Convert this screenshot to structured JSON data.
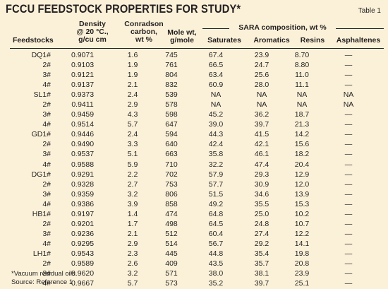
{
  "title": "FCCU FEEDSTOCK PROPERTIES FOR STUDY*",
  "table_number": "Table 1",
  "headers": {
    "feedstocks": "Feedstocks",
    "density_l1": "Density",
    "density_l2": "@ 20 °C.,",
    "density_l3": "g/cu cm",
    "conradson_l1": "Conradson",
    "conradson_l2": "carbon,",
    "conradson_l3": "wt %",
    "molewt_l1": "Mole wt,",
    "molewt_l2": "g/mole",
    "sara_group": "SARA composition, wt %",
    "saturates": "Saturates",
    "aromatics": "Aromatics",
    "resins": "Resins",
    "asphaltenes": "Asphaltenes"
  },
  "rows": [
    {
      "feed": "DQ1#",
      "density": "0.9071",
      "conradson": "1.6",
      "molewt": "745",
      "saturates": "67.4",
      "aromatics": "23.9",
      "resins": "8.70",
      "asphaltenes": "—"
    },
    {
      "feed": "2#",
      "density": "0.9103",
      "conradson": "1.9",
      "molewt": "761",
      "saturates": "66.5",
      "aromatics": "24.7",
      "resins": "8.80",
      "asphaltenes": "—"
    },
    {
      "feed": "3#",
      "density": "0.9121",
      "conradson": "1.9",
      "molewt": "804",
      "saturates": "63.4",
      "aromatics": "25.6",
      "resins": "11.0",
      "asphaltenes": "—"
    },
    {
      "feed": "4#",
      "density": "0.9137",
      "conradson": "2.1",
      "molewt": "832",
      "saturates": "60.9",
      "aromatics": "28.0",
      "resins": "11.1",
      "asphaltenes": "—"
    },
    {
      "feed": "SL1#",
      "density": "0.9373",
      "conradson": "2.4",
      "molewt": "539",
      "saturates": "NA",
      "aromatics": "NA",
      "resins": "NA",
      "asphaltenes": "NA"
    },
    {
      "feed": "2#",
      "density": "0.9411",
      "conradson": "2.9",
      "molewt": "578",
      "saturates": "NA",
      "aromatics": "NA",
      "resins": "NA",
      "asphaltenes": "NA"
    },
    {
      "feed": "3#",
      "density": "0.9459",
      "conradson": "4.3",
      "molewt": "598",
      "saturates": "45.2",
      "aromatics": "36.2",
      "resins": "18.7",
      "asphaltenes": "—"
    },
    {
      "feed": "4#",
      "density": "0.9514",
      "conradson": "5.7",
      "molewt": "647",
      "saturates": "39.0",
      "aromatics": "39.7",
      "resins": "21.3",
      "asphaltenes": "—"
    },
    {
      "feed": "GD1#",
      "density": "0.9446",
      "conradson": "2.4",
      "molewt": "594",
      "saturates": "44.3",
      "aromatics": "41.5",
      "resins": "14.2",
      "asphaltenes": "—"
    },
    {
      "feed": "2#",
      "density": "0.9490",
      "conradson": "3.3",
      "molewt": "640",
      "saturates": "42.4",
      "aromatics": "42.1",
      "resins": "15.6",
      "asphaltenes": "—"
    },
    {
      "feed": "3#",
      "density": "0.9537",
      "conradson": "5.1",
      "molewt": "663",
      "saturates": "35.8",
      "aromatics": "46.1",
      "resins": "18.2",
      "asphaltenes": "—"
    },
    {
      "feed": "4#",
      "density": "0.9588",
      "conradson": "5.9",
      "molewt": "710",
      "saturates": "32.2",
      "aromatics": "47.4",
      "resins": "20.4",
      "asphaltenes": "—"
    },
    {
      "feed": "DG1#",
      "density": "0.9291",
      "conradson": "2.2",
      "molewt": "702",
      "saturates": "57.9",
      "aromatics": "29.3",
      "resins": "12.9",
      "asphaltenes": "—"
    },
    {
      "feed": "2#",
      "density": "0.9328",
      "conradson": "2.7",
      "molewt": "753",
      "saturates": "57.7",
      "aromatics": "30.9",
      "resins": "12.0",
      "asphaltenes": "—"
    },
    {
      "feed": "3#",
      "density": "0.9359",
      "conradson": "3.2",
      "molewt": "806",
      "saturates": "51.5",
      "aromatics": "34.6",
      "resins": "13.9",
      "asphaltenes": "—"
    },
    {
      "feed": "4#",
      "density": "0.9386",
      "conradson": "3.9",
      "molewt": "858",
      "saturates": "49.2",
      "aromatics": "35.5",
      "resins": "15.3",
      "asphaltenes": "—"
    },
    {
      "feed": "HB1#",
      "density": "0.9197",
      "conradson": "1.4",
      "molewt": "474",
      "saturates": "64.8",
      "aromatics": "25.0",
      "resins": "10.2",
      "asphaltenes": "—"
    },
    {
      "feed": "2#",
      "density": "0.9201",
      "conradson": "1.7",
      "molewt": "498",
      "saturates": "64.5",
      "aromatics": "24.8",
      "resins": "10.7",
      "asphaltenes": "—"
    },
    {
      "feed": "3#",
      "density": "0.9236",
      "conradson": "2.1",
      "molewt": "512",
      "saturates": "60.4",
      "aromatics": "27.4",
      "resins": "12.2",
      "asphaltenes": "—"
    },
    {
      "feed": "4#",
      "density": "0.9295",
      "conradson": "2.9",
      "molewt": "514",
      "saturates": "56.7",
      "aromatics": "29.2",
      "resins": "14.1",
      "asphaltenes": "—"
    },
    {
      "feed": "LH1#",
      "density": "0.9543",
      "conradson": "2.3",
      "molewt": "445",
      "saturates": "44.8",
      "aromatics": "35.4",
      "resins": "19.8",
      "asphaltenes": "—"
    },
    {
      "feed": "2#",
      "density": "0.9589",
      "conradson": "2.6",
      "molewt": "409",
      "saturates": "43.5",
      "aromatics": "35.7",
      "resins": "20.8",
      "asphaltenes": "—"
    },
    {
      "feed": "3#",
      "density": "0.9620",
      "conradson": "3.2",
      "molewt": "571",
      "saturates": "38.0",
      "aromatics": "38.1",
      "resins": "23.9",
      "asphaltenes": "—"
    },
    {
      "feed": "4#",
      "density": "0.9667",
      "conradson": "5.7",
      "molewt": "573",
      "saturates": "35.2",
      "aromatics": "39.7",
      "resins": "25.1",
      "asphaltenes": "—"
    }
  ],
  "footnote": "*Vacuum residual oils.",
  "source": "Source: Reference 1"
}
